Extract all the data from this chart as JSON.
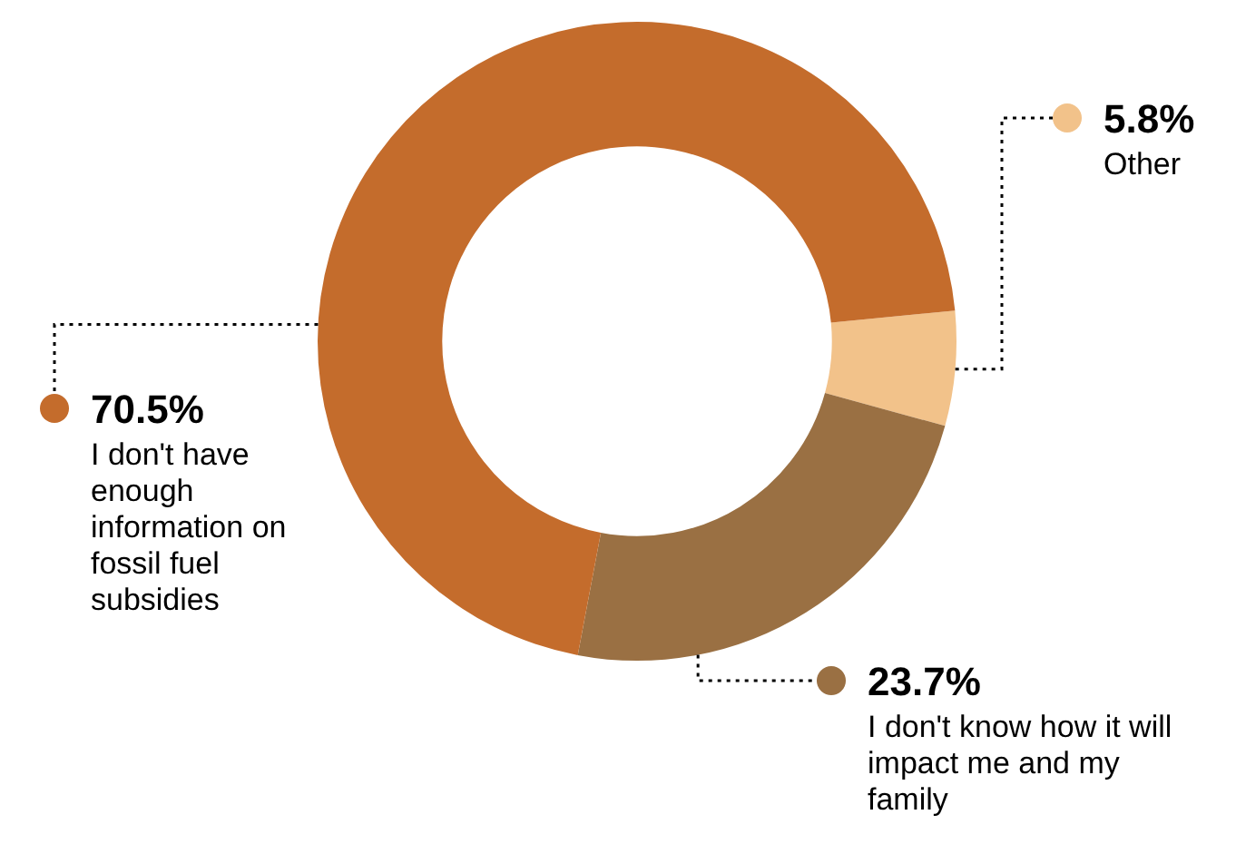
{
  "chart_data": {
    "type": "donut",
    "categories": [
      "Other",
      "I don't know how it will impact me and my family",
      "I don't have enough information on fossil fuel subsidies"
    ],
    "values": [
      5.8,
      23.7,
      70.5
    ],
    "value_labels": [
      "5.8%",
      "23.7%",
      "70.5%"
    ],
    "colors": [
      "#f2c28a",
      "#9a7043",
      "#c46c2c"
    ]
  }
}
